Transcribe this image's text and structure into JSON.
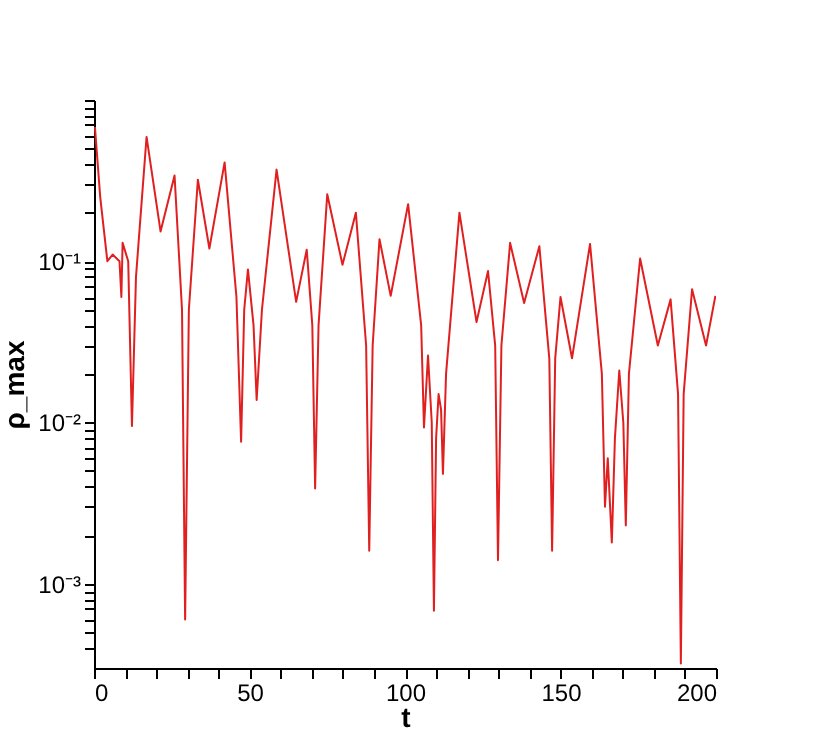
{
  "chart_data": {
    "type": "line",
    "xlabel": "t",
    "ylabel": "ρ_max",
    "log": "y",
    "grid": false,
    "marker": "none",
    "line_style": "solid",
    "xlim": [
      0,
      200
    ],
    "xticks": [
      0,
      {
        "value": 10,
        "label": null
      },
      {
        "value": 20,
        "label": null
      },
      {
        "value": 30,
        "label": null
      },
      {
        "value": 40,
        "label": null
      },
      50,
      {
        "value": 60,
        "label": null
      },
      {
        "value": 70,
        "label": null
      },
      {
        "value": 80,
        "label": null
      },
      {
        "value": 90,
        "label": null
      },
      100,
      {
        "value": 110,
        "label": null
      },
      {
        "value": 120,
        "label": null
      },
      {
        "value": 130,
        "label": null
      },
      {
        "value": 140,
        "label": null
      },
      150,
      {
        "value": 160,
        "label": null
      },
      {
        "value": 170,
        "label": null
      },
      {
        "value": 180,
        "label": null
      },
      {
        "value": 190,
        "label": null
      },
      200
    ],
    "ylim": [
      0.0003,
      1
    ],
    "yticks": [
      {
        "value": 0.0004,
        "label": null
      },
      {
        "value": 0.0005,
        "label": null
      },
      {
        "value": 0.0006,
        "label": null
      },
      {
        "value": 0.0007,
        "label": null
      },
      {
        "value": 0.0008,
        "label": null
      },
      {
        "value": 0.0009,
        "label": null
      },
      {
        "value": 0.001,
        "label": "10⁻³"
      },
      {
        "value": 0.002,
        "label": null
      },
      {
        "value": 0.003,
        "label": null
      },
      {
        "value": 0.004,
        "label": null
      },
      {
        "value": 0.005,
        "label": null
      },
      {
        "value": 0.006,
        "label": null
      },
      {
        "value": 0.007,
        "label": null
      },
      {
        "value": 0.008,
        "label": null
      },
      {
        "value": 0.009,
        "label": null
      },
      {
        "value": 0.01,
        "label": "10⁻²"
      },
      {
        "value": 0.02,
        "label": null
      },
      {
        "value": 0.03,
        "label": null
      },
      {
        "value": 0.04,
        "label": null
      },
      {
        "value": 0.05,
        "label": null
      },
      {
        "value": 0.06,
        "label": null
      },
      {
        "value": 0.07,
        "label": null
      },
      {
        "value": 0.08,
        "label": null
      },
      {
        "value": 0.09,
        "label": null
      },
      {
        "value": 0.1,
        "label": "10⁻¹"
      },
      {
        "value": 0.2,
        "label": null
      },
      {
        "value": 0.3,
        "label": null
      },
      {
        "value": 0.4,
        "label": null
      },
      {
        "value": 0.5,
        "label": null
      },
      {
        "value": 0.6,
        "label": null
      },
      {
        "value": 0.7,
        "label": null
      },
      {
        "value": 0.8,
        "label": null
      },
      {
        "value": 0.9,
        "label": null
      },
      {
        "value": 1,
        "label": null
      }
    ],
    "series": [
      {
        "color": "#e02020",
        "x": [
          0.3,
          2,
          4.3,
          6,
          8.2,
          8.8,
          9.2,
          11,
          12.2,
          13.5,
          16.9,
          21.4,
          25.9,
          28.3,
          29.3,
          30.5,
          33.4,
          37.1,
          42,
          45.8,
          47.3,
          48.3,
          49.5,
          51.3,
          52.3,
          54,
          58.7,
          65,
          68.4,
          70.2,
          71.1,
          72.2,
          75,
          79.9,
          84.2,
          87.5,
          88.5,
          89.6,
          91.8,
          95.4,
          101,
          105.2,
          106.1,
          107.4,
          108.6,
          109.3,
          110,
          110.8,
          111.6,
          112.2,
          113.2,
          117.5,
          123,
          126.7,
          129,
          129.9,
          131,
          133.8,
          138.3,
          143.2,
          146.4,
          147.3,
          148.3,
          150,
          153.7,
          159.5,
          163.3,
          164.3,
          165.2,
          166.5,
          167.5,
          168.9,
          170.2,
          171,
          172,
          175.6,
          181.3,
          185.4,
          187.8,
          188.7,
          189.6,
          192.3,
          196.8,
          199.8
        ],
        "values": [
          0.68,
          0.25,
          0.1,
          0.11,
          0.1,
          0.06,
          0.13,
          0.1,
          0.0095,
          0.08,
          0.59,
          0.153,
          0.34,
          0.05,
          0.0006,
          0.05,
          0.32,
          0.12,
          0.41,
          0.06,
          0.0076,
          0.05,
          0.089,
          0.04,
          0.0138,
          0.05,
          0.37,
          0.056,
          0.118,
          0.04,
          0.0039,
          0.04,
          0.26,
          0.095,
          0.2,
          0.03,
          0.0016,
          0.03,
          0.137,
          0.061,
          0.226,
          0.04,
          0.0093,
          0.026,
          0.01,
          0.00068,
          0.008,
          0.015,
          0.012,
          0.0048,
          0.02,
          0.2,
          0.042,
          0.087,
          0.03,
          0.0014,
          0.03,
          0.13,
          0.055,
          0.124,
          0.025,
          0.0016,
          0.025,
          0.06,
          0.025,
          0.128,
          0.02,
          0.003,
          0.006,
          0.0018,
          0.008,
          0.021,
          0.01,
          0.0023,
          0.02,
          0.104,
          0.03,
          0.058,
          0.015,
          0.00032,
          0.015,
          0.067,
          0.03,
          0.061
        ]
      }
    ]
  }
}
